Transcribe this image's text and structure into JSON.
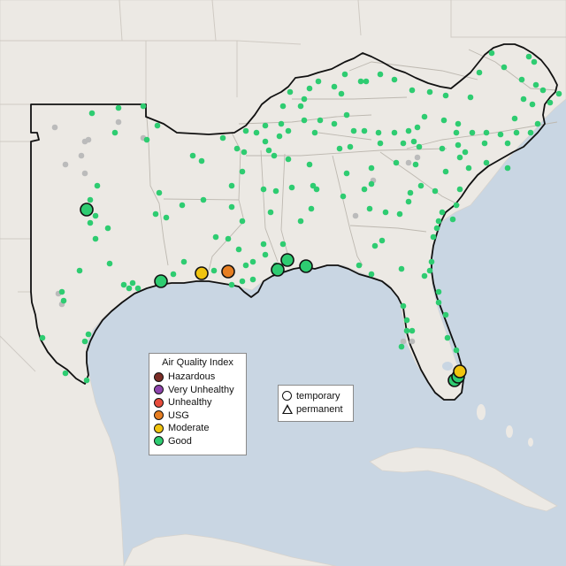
{
  "map": {
    "colors": {
      "water": "#c9d6e3",
      "land": "#ece9e4",
      "region_outline": "#111111",
      "hazardous": "#7b2d26",
      "very_unhealthy": "#8e44ad",
      "unhealthy": "#e74c3c",
      "usg": "#e67e22",
      "moderate": "#f1c40f",
      "good": "#2ecc71",
      "no_data": "#bbbbbb"
    }
  },
  "aqi_legend": {
    "title": "Air Quality Index",
    "items": [
      {
        "label": "Hazardous",
        "color": "#7b2d26"
      },
      {
        "label": "Very Unhealthy",
        "color": "#8e44ad"
      },
      {
        "label": "Unhealthy",
        "color": "#e74c3c"
      },
      {
        "label": "USG",
        "color": "#e67e22"
      },
      {
        "label": "Moderate",
        "color": "#f1c40f"
      },
      {
        "label": "Good",
        "color": "#2ecc71"
      }
    ]
  },
  "shape_legend": {
    "temporary": "temporary",
    "permanent": "permanent"
  }
}
